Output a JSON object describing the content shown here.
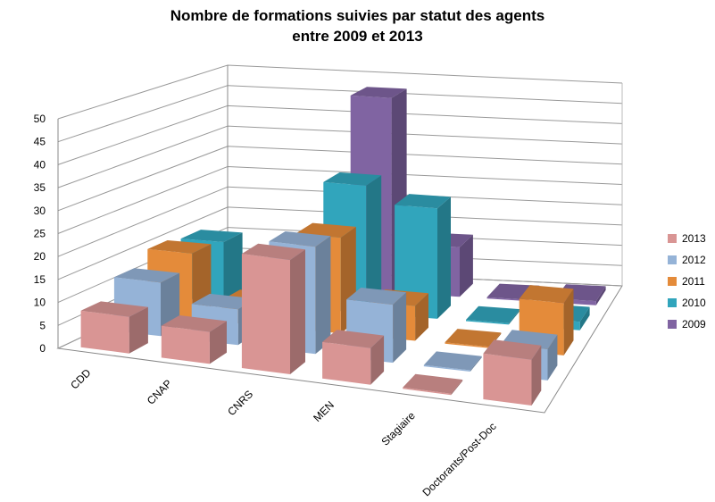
{
  "chart_data": {
    "type": "bar",
    "subtype": "3d-column",
    "title": [
      "Nombre de formations suivies par statut des agents",
      "entre 2009 et 2013"
    ],
    "categories": [
      "CDD",
      "CNAP",
      "CNRS",
      "MEN",
      "Stagiaire",
      "Doctorants/Post-Doc"
    ],
    "series": [
      {
        "name": "2013",
        "color": "#D99594",
        "values": [
          8,
          7,
          25,
          8,
          0,
          10
        ]
      },
      {
        "name": "2012",
        "color": "#95B3D7",
        "values": [
          12,
          8,
          24,
          13,
          0,
          7
        ]
      },
      {
        "name": "2011",
        "color": "#E48B3A",
        "values": [
          15,
          5,
          22,
          8,
          0,
          12
        ]
      },
      {
        "name": "2010",
        "color": "#31A5BC",
        "values": [
          14,
          8,
          30,
          26,
          0,
          2
        ]
      },
      {
        "name": "2009",
        "color": "#8064A2",
        "values": [
          3,
          3,
          47,
          12,
          0,
          1
        ]
      }
    ],
    "yticks": [
      "0",
      "5",
      "10",
      "15",
      "20",
      "25",
      "30",
      "35",
      "40",
      "45",
      "50"
    ],
    "ylim": [
      0,
      50
    ],
    "legend": "right",
    "grid": true
  }
}
